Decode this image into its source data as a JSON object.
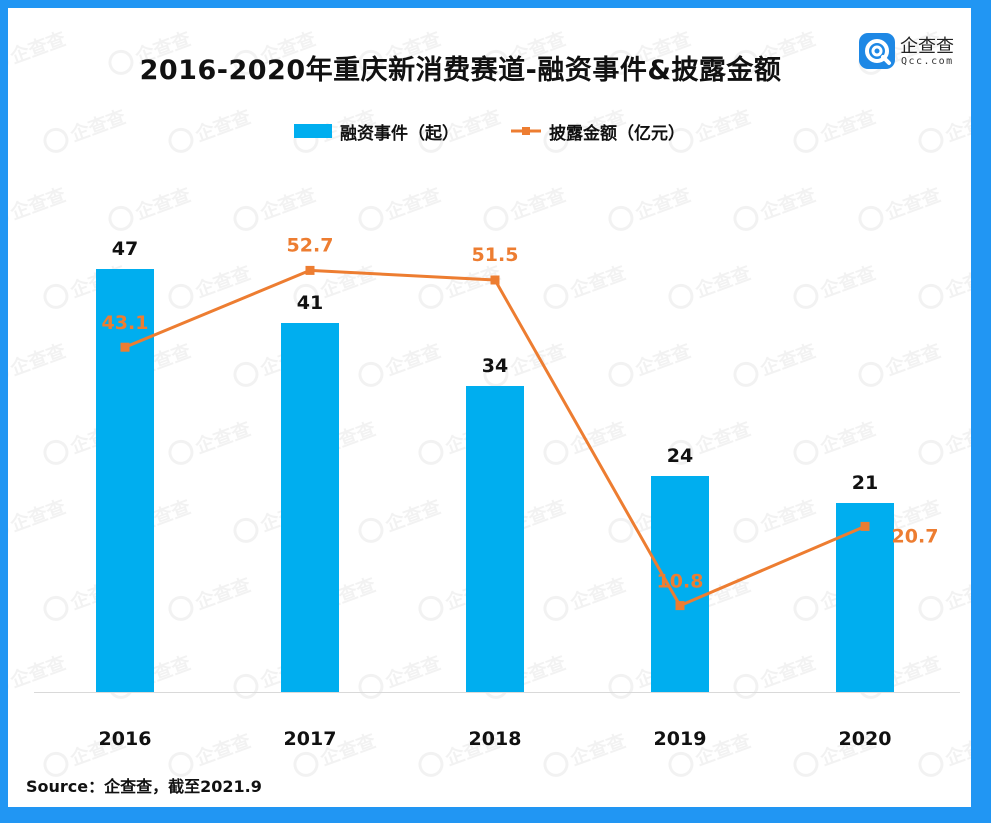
{
  "title": "2016-2020年重庆新消费赛道-融资事件&披露金额",
  "logo": {
    "name": "企查查",
    "domain": "Qcc.com"
  },
  "legend": {
    "bar_label": "融资事件（起）",
    "line_label": "披露金额（亿元）"
  },
  "source": "Source：企查查，截至2021.9",
  "watermark_text": "企查查",
  "colors": {
    "bar": "#00AEEF",
    "line": "#ED7D31",
    "border": "#2196F3"
  },
  "chart_data": {
    "type": "bar",
    "categories": [
      "2016",
      "2017",
      "2018",
      "2019",
      "2020"
    ],
    "series": [
      {
        "name": "融资事件（起）",
        "type": "bar",
        "values": [
          47,
          41,
          34,
          24,
          21
        ]
      },
      {
        "name": "披露金额（亿元）",
        "type": "line",
        "values": [
          43.1,
          52.7,
          51.5,
          10.8,
          20.7
        ]
      }
    ],
    "title": "2016-2020年重庆新消费赛道-融资事件&披露金额",
    "xlabel": "",
    "ylabel": "",
    "grid": false,
    "legend_position": "top"
  }
}
